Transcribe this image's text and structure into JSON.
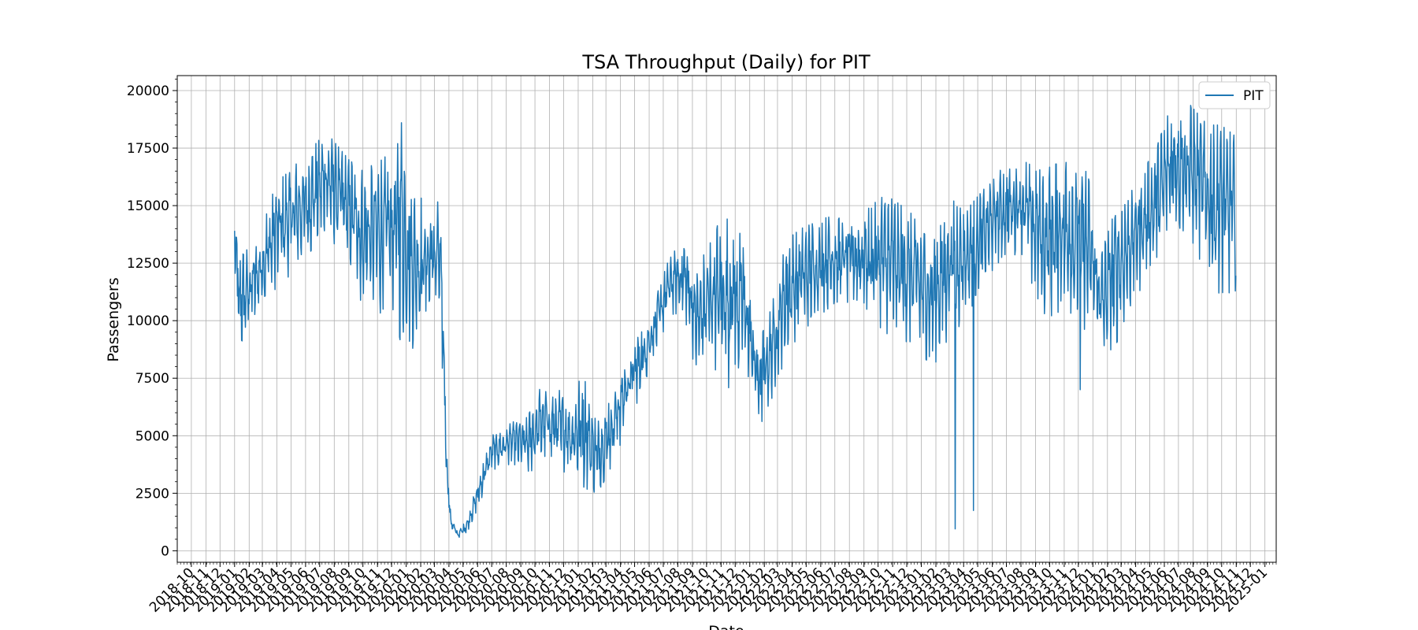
{
  "chart_data": {
    "type": "line",
    "title": "TSA Throughput (Daily) for PIT",
    "xlabel": "Date",
    "ylabel": "Passengers",
    "ylim": [
      -500,
      20650
    ],
    "xlim": [
      "2018-09-01",
      "2025-01-25"
    ],
    "yticks": [
      0,
      2500,
      5000,
      7500,
      10000,
      12500,
      15000,
      17500,
      20000
    ],
    "xticks": [
      "2018-10",
      "2018-11",
      "2018-12",
      "2019-01",
      "2019-02",
      "2019-03",
      "2019-04",
      "2019-05",
      "2019-06",
      "2019-07",
      "2019-08",
      "2019-09",
      "2019-10",
      "2019-11",
      "2019-12",
      "2020-01",
      "2020-02",
      "2020-03",
      "2020-04",
      "2020-05",
      "2020-06",
      "2020-07",
      "2020-08",
      "2020-09",
      "2020-10",
      "2020-11",
      "2020-12",
      "2021-01",
      "2021-02",
      "2021-03",
      "2021-04",
      "2021-05",
      "2021-06",
      "2021-07",
      "2021-08",
      "2021-09",
      "2021-10",
      "2021-11",
      "2021-12",
      "2022-01",
      "2022-02",
      "2022-03",
      "2022-04",
      "2022-05",
      "2022-06",
      "2022-07",
      "2022-08",
      "2022-09",
      "2022-10",
      "2022-11",
      "2022-12",
      "2023-01",
      "2023-02",
      "2023-03",
      "2023-04",
      "2023-05",
      "2023-06",
      "2023-07",
      "2023-08",
      "2023-09",
      "2023-10",
      "2023-11",
      "2023-12",
      "2024-01",
      "2024-02",
      "2024-03",
      "2024-04",
      "2024-05",
      "2024-06",
      "2024-07",
      "2024-08",
      "2024-09",
      "2024-10",
      "2024-11",
      "2024-12",
      "2025-01"
    ],
    "grid": true,
    "legend": {
      "position": "top-right",
      "entries": [
        "PIT"
      ]
    },
    "series": [
      {
        "name": "PIT",
        "color": "#1f77b4",
        "daily_start": "2019-01-01",
        "daily_end": "2024-10-31",
        "daily_band_points": [
          {
            "x": "2019-01-01",
            "low": 12000,
            "high": 15000
          },
          {
            "x": "2019-01-10",
            "low": 8500,
            "high": 12700
          },
          {
            "x": "2019-02-15",
            "low": 9800,
            "high": 13500
          },
          {
            "x": "2019-04-01",
            "low": 11500,
            "high": 16000
          },
          {
            "x": "2019-06-01",
            "low": 12500,
            "high": 17200
          },
          {
            "x": "2019-07-15",
            "low": 13800,
            "high": 18200
          },
          {
            "x": "2019-09-01",
            "low": 12500,
            "high": 17000
          },
          {
            "x": "2019-10-01",
            "low": 10500,
            "high": 16500
          },
          {
            "x": "2019-12-01",
            "low": 10200,
            "high": 17300
          },
          {
            "x": "2019-12-22",
            "low": 9000,
            "high": 18600
          },
          {
            "x": "2020-01-15",
            "low": 8800,
            "high": 15500
          },
          {
            "x": "2020-02-15",
            "low": 9500,
            "high": 15200
          },
          {
            "x": "2020-03-12",
            "low": 10000,
            "high": 15300
          },
          {
            "x": "2020-03-20",
            "low": 7000,
            "high": 10800
          },
          {
            "x": "2020-03-28",
            "low": 2500,
            "high": 4000
          },
          {
            "x": "2020-04-05",
            "low": 1000,
            "high": 1500
          },
          {
            "x": "2020-04-20",
            "low": 550,
            "high": 800
          },
          {
            "x": "2020-05-10",
            "low": 800,
            "high": 1400
          },
          {
            "x": "2020-06-01",
            "low": 1800,
            "high": 3000
          },
          {
            "x": "2020-07-01",
            "low": 3500,
            "high": 5000
          },
          {
            "x": "2020-08-15",
            "low": 3800,
            "high": 5600
          },
          {
            "x": "2020-09-15",
            "low": 3300,
            "high": 5800
          },
          {
            "x": "2020-10-15",
            "low": 3800,
            "high": 7200
          },
          {
            "x": "2020-11-20",
            "low": 3500,
            "high": 7000
          },
          {
            "x": "2020-12-20",
            "low": 3300,
            "high": 6500
          },
          {
            "x": "2021-01-10",
            "low": 2700,
            "high": 7800
          },
          {
            "x": "2021-02-10",
            "low": 2500,
            "high": 5500
          },
          {
            "x": "2021-03-15",
            "low": 3600,
            "high": 7000
          },
          {
            "x": "2021-04-15",
            "low": 5500,
            "high": 8600
          },
          {
            "x": "2021-05-15",
            "low": 6800,
            "high": 9600
          },
          {
            "x": "2021-06-15",
            "low": 8500,
            "high": 11000
          },
          {
            "x": "2021-07-15",
            "low": 10300,
            "high": 12800
          },
          {
            "x": "2021-08-15",
            "low": 10200,
            "high": 13500
          },
          {
            "x": "2021-09-10",
            "low": 7500,
            "high": 12000
          },
          {
            "x": "2021-10-15",
            "low": 8000,
            "high": 14000
          },
          {
            "x": "2021-11-20",
            "low": 7000,
            "high": 14500
          },
          {
            "x": "2021-12-20",
            "low": 7500,
            "high": 13500
          },
          {
            "x": "2022-01-20",
            "low": 5200,
            "high": 9000
          },
          {
            "x": "2022-02-15",
            "low": 6500,
            "high": 10500
          },
          {
            "x": "2022-03-20",
            "low": 8500,
            "high": 13500
          },
          {
            "x": "2022-04-20",
            "low": 9500,
            "high": 14000
          },
          {
            "x": "2022-06-15",
            "low": 10500,
            "high": 14500
          },
          {
            "x": "2022-08-15",
            "low": 10800,
            "high": 14400
          },
          {
            "x": "2022-10-15",
            "low": 9500,
            "high": 15500
          },
          {
            "x": "2022-11-20",
            "low": 9000,
            "high": 15000
          },
          {
            "x": "2022-12-20",
            "low": 8800,
            "high": 14500
          },
          {
            "x": "2023-01-25",
            "low": 8000,
            "high": 13500
          },
          {
            "x": "2023-03-01",
            "low": 9000,
            "high": 15500
          },
          {
            "x": "2023-04-15",
            "low": 10500,
            "high": 15000
          },
          {
            "x": "2023-06-15",
            "low": 12500,
            "high": 16500
          },
          {
            "x": "2023-08-01",
            "low": 13000,
            "high": 17000
          },
          {
            "x": "2023-09-15",
            "low": 10000,
            "high": 16500
          },
          {
            "x": "2023-11-01",
            "low": 10500,
            "high": 17000
          },
          {
            "x": "2023-12-20",
            "low": 9500,
            "high": 16500
          },
          {
            "x": "2024-01-20",
            "low": 8300,
            "high": 13000
          },
          {
            "x": "2024-02-20",
            "low": 9000,
            "high": 15000
          },
          {
            "x": "2024-04-01",
            "low": 11000,
            "high": 16000
          },
          {
            "x": "2024-05-15",
            "low": 12500,
            "high": 17500
          },
          {
            "x": "2024-06-20",
            "low": 14000,
            "high": 19600
          },
          {
            "x": "2024-07-25",
            "low": 13500,
            "high": 19400
          },
          {
            "x": "2024-09-01",
            "low": 12000,
            "high": 18500
          },
          {
            "x": "2024-10-01",
            "low": 11000,
            "high": 18500
          },
          {
            "x": "2024-10-31",
            "low": 11300,
            "high": 18000
          }
        ],
        "outliers": [
          {
            "x": "2019-12-22",
            "y": 18600
          },
          {
            "x": "2023-03-14",
            "y": 950
          },
          {
            "x": "2023-04-22",
            "y": 1750
          },
          {
            "x": "2023-12-05",
            "y": 7000
          }
        ]
      }
    ]
  }
}
